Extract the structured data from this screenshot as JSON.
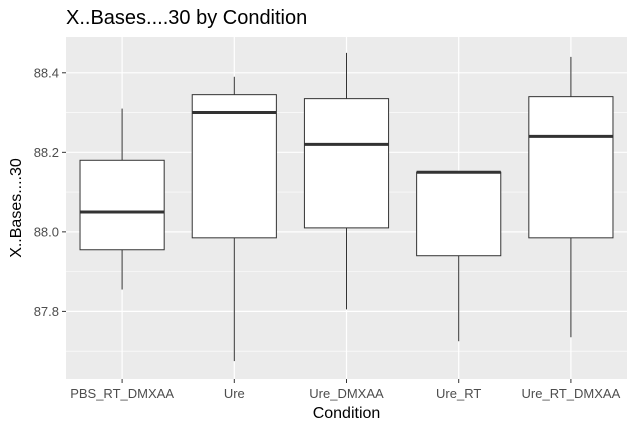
{
  "chart_data": {
    "type": "boxplot",
    "title": "X..Bases....30 by Condition",
    "xlabel": "Condition",
    "ylabel": "X..Bases....30",
    "ylim": [
      87.63,
      88.49
    ],
    "y_ticks": [
      87.8,
      88.0,
      88.2,
      88.4
    ],
    "y_tick_labels": [
      "87.8",
      "88.0",
      "88.2",
      "88.4"
    ],
    "categories": [
      "PBS_RT_DMXAA",
      "Ure",
      "Ure_DMXAA",
      "Ure_RT",
      "Ure_RT_DMXAA"
    ],
    "boxes": [
      {
        "category": "PBS_RT_DMXAA",
        "whisker_low": 87.855,
        "q1": 87.955,
        "median": 88.05,
        "q3": 88.18,
        "whisker_high": 88.31
      },
      {
        "category": "Ure",
        "whisker_low": 87.675,
        "q1": 87.985,
        "median": 88.3,
        "q3": 88.345,
        "whisker_high": 88.39
      },
      {
        "category": "Ure_DMXAA",
        "whisker_low": 87.805,
        "q1": 88.01,
        "median": 88.22,
        "q3": 88.335,
        "whisker_high": 88.45
      },
      {
        "category": "Ure_RT",
        "whisker_low": 87.725,
        "q1": 87.94,
        "median": 88.15,
        "q3": 88.15,
        "whisker_high": 88.15
      },
      {
        "category": "Ure_RT_DMXAA",
        "whisker_low": 87.735,
        "q1": 87.985,
        "median": 88.24,
        "q3": 88.34,
        "whisker_high": 88.44
      }
    ],
    "grid": true,
    "legend": "none",
    "panel_background": "#ebebeb",
    "grid_color": "#ffffff",
    "box_fill": "#ffffff",
    "box_stroke": "#333333",
    "text_color": "#4d4d4d"
  }
}
